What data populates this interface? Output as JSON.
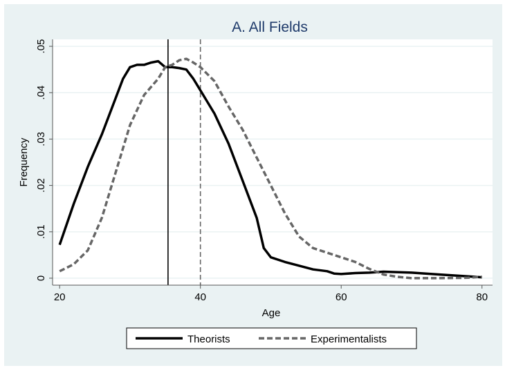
{
  "chart_data": {
    "type": "line",
    "title": "A. All Fields",
    "xlabel": "Age",
    "ylabel": "Frequency",
    "xlim": [
      19,
      81.5
    ],
    "ylim": [
      -0.0015,
      0.0515
    ],
    "xticks": [
      20,
      40,
      60,
      80
    ],
    "xtick_labels": [
      "20",
      "40",
      "60",
      "80"
    ],
    "yticks": [
      0,
      0.01,
      0.02,
      0.03,
      0.04,
      0.05
    ],
    "ytick_labels": [
      "0",
      ".01",
      ".02",
      ".03",
      ".04",
      ".05"
    ],
    "grid": true,
    "legend_position": "bottom",
    "series": [
      {
        "name": "Theorists",
        "color": "#000000",
        "style": "solid",
        "x": [
          20,
          22,
          24,
          26,
          28,
          29,
          30,
          31,
          32,
          33,
          34,
          35,
          36,
          37,
          38,
          39,
          40,
          42,
          44,
          46,
          48,
          49,
          50,
          52,
          54,
          56,
          58,
          59,
          60,
          62,
          64,
          66,
          70,
          74,
          78,
          80
        ],
        "y": [
          0.0072,
          0.016,
          0.024,
          0.031,
          0.039,
          0.043,
          0.0455,
          0.046,
          0.046,
          0.0465,
          0.0468,
          0.0455,
          0.0455,
          0.0453,
          0.045,
          0.043,
          0.0405,
          0.0355,
          0.029,
          0.021,
          0.013,
          0.0065,
          0.0045,
          0.0035,
          0.0027,
          0.0019,
          0.0015,
          0.001,
          0.0009,
          0.0011,
          0.0012,
          0.0014,
          0.0012,
          0.0008,
          0.0004,
          0.0002
        ]
      },
      {
        "name": "Experimentalists",
        "color": "#666666",
        "style": "dashed",
        "x": [
          20,
          22,
          24,
          26,
          28,
          30,
          32,
          34,
          35,
          36,
          37,
          38,
          39,
          40,
          42,
          44,
          46,
          48,
          50,
          52,
          54,
          56,
          58,
          60,
          62,
          64,
          66,
          68,
          70,
          74,
          78,
          80
        ],
        "y": [
          0.0015,
          0.003,
          0.006,
          0.013,
          0.023,
          0.033,
          0.0395,
          0.043,
          0.0455,
          0.046,
          0.047,
          0.0473,
          0.0465,
          0.0455,
          0.0425,
          0.037,
          0.032,
          0.026,
          0.02,
          0.014,
          0.009,
          0.0065,
          0.0055,
          0.0045,
          0.0035,
          0.002,
          0.0008,
          0.0003,
          0,
          0,
          0.0001,
          0.0003
        ]
      }
    ],
    "vertical_lines": [
      {
        "series": "Theorists",
        "x": 35.4,
        "style": "solid"
      },
      {
        "series": "Experimentalists",
        "x": 40,
        "style": "dashed"
      }
    ]
  }
}
